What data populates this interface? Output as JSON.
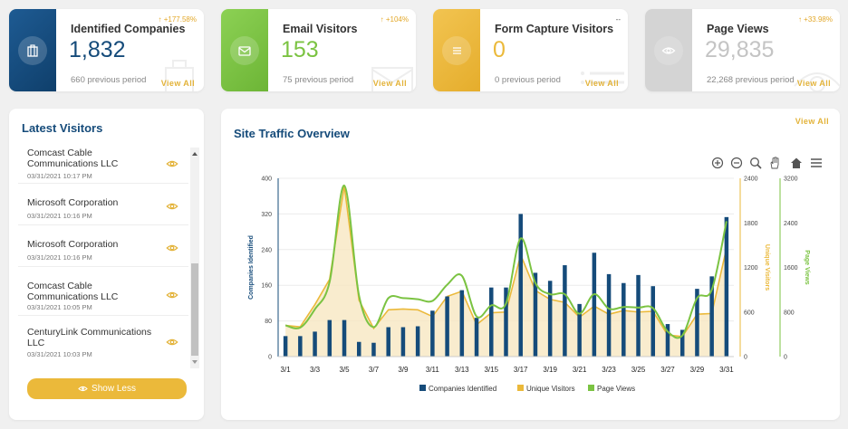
{
  "stats": [
    {
      "title": "Identified Companies",
      "value": "1,832",
      "previous": "660 previous period",
      "change": "177.58%",
      "view_all": "View All",
      "color": "#154b7a",
      "value_color": "#154b7a",
      "icon": "building-icon"
    },
    {
      "title": "Email Visitors",
      "value": "153",
      "previous": "75 previous period",
      "change": "104%",
      "view_all": "View All",
      "color": "#7bc342",
      "value_color": "#7bc342",
      "icon": "envelope-icon"
    },
    {
      "title": "Form Capture Visitors",
      "value": "0",
      "previous": "0 previous period",
      "change": "--",
      "view_all": "View All",
      "color": "#ebb93a",
      "value_color": "#ebb93a",
      "icon": "list-icon"
    },
    {
      "title": "Page Views",
      "value": "29,835",
      "previous": "22,268 previous period",
      "change": "33.98%",
      "view_all": "View All",
      "color": "#cfcfcf",
      "value_color": "#c4c4c4",
      "icon": "eye-icon"
    }
  ],
  "latest_visitors": {
    "title": "Latest Visitors",
    "items": [
      {
        "name": "Comcast Cable Communications LLC",
        "date": "03/31/2021 10:17 PM"
      },
      {
        "name": "Microsoft Corporation",
        "date": "03/31/2021 10:16 PM"
      },
      {
        "name": "Microsoft Corporation",
        "date": "03/31/2021 10:16 PM"
      },
      {
        "name": "Comcast Cable Communications LLC",
        "date": "03/31/2021 10:05 PM"
      },
      {
        "name": "CenturyLink Communications LLC",
        "date": "03/31/2021 10:03 PM"
      }
    ],
    "show_less": "Show Less"
  },
  "site_traffic": {
    "title": "Site Traffic Overview",
    "view_all": "View All"
  },
  "chart_data": {
    "type": "bar",
    "x": [
      "3/1",
      "3/2",
      "3/3",
      "3/4",
      "3/5",
      "3/6",
      "3/7",
      "3/8",
      "3/9",
      "3/10",
      "3/11",
      "3/12",
      "3/13",
      "3/14",
      "3/15",
      "3/16",
      "3/17",
      "3/18",
      "3/19",
      "3/20",
      "3/21",
      "3/22",
      "3/23",
      "3/24",
      "3/25",
      "3/26",
      "3/27",
      "3/28",
      "3/29",
      "3/30",
      "3/31"
    ],
    "x_tick_labels": [
      "3/1",
      "3/3",
      "3/5",
      "3/7",
      "3/9",
      "3/11",
      "3/13",
      "3/15",
      "3/17",
      "3/19",
      "3/21",
      "3/23",
      "3/25",
      "3/27",
      "3/29",
      "3/31"
    ],
    "series": [
      {
        "name": "Companies Identified",
        "type": "bar",
        "axis": "left",
        "color": "#154b7a",
        "values": [
          46,
          46,
          56,
          82,
          82,
          33,
          31,
          66,
          66,
          68,
          103,
          135,
          149,
          87,
          155,
          155,
          320,
          188,
          170,
          205,
          118,
          233,
          185,
          165,
          183,
          158,
          73,
          60,
          152,
          180,
          313
        ]
      },
      {
        "name": "Unique Visitors",
        "type": "area",
        "axis": "right1",
        "color": "#ebb93a",
        "values": [
          420,
          400,
          700,
          1040,
          2300,
          760,
          380,
          630,
          640,
          630,
          540,
          810,
          880,
          430,
          590,
          600,
          1370,
          890,
          770,
          730,
          530,
          680,
          570,
          620,
          600,
          610,
          290,
          270,
          570,
          580,
          1460
        ]
      },
      {
        "name": "Page Views",
        "type": "line",
        "axis": "right2",
        "color": "#7bc342",
        "values": [
          560,
          520,
          850,
          1340,
          3070,
          1100,
          530,
          1050,
          1050,
          1030,
          1000,
          1290,
          1450,
          720,
          920,
          950,
          2120,
          1320,
          1120,
          1120,
          770,
          1120,
          860,
          890,
          880,
          870,
          450,
          380,
          1050,
          1200,
          2430
        ]
      }
    ],
    "yaxes": [
      {
        "id": "left",
        "label": "Companies Identified",
        "range": [
          0,
          400
        ],
        "ticks": [
          0,
          80,
          160,
          240,
          320,
          400
        ],
        "color": "#154b7a"
      },
      {
        "id": "right1",
        "label": "Unique Visitors",
        "range": [
          0,
          2400
        ],
        "ticks": [
          0,
          600,
          1200,
          1800,
          2400
        ],
        "color": "#ebb93a"
      },
      {
        "id": "right2",
        "label": "Page Views",
        "range": [
          0,
          3200
        ],
        "ticks": [
          0,
          800,
          1600,
          2400,
          3200
        ],
        "color": "#7bc342"
      }
    ],
    "legend": "bottom",
    "grid": true,
    "toolbar": [
      "zoom-in-icon",
      "zoom-out-icon",
      "zoom-icon",
      "pan-hand-icon",
      "home-icon",
      "menu-icon"
    ]
  }
}
